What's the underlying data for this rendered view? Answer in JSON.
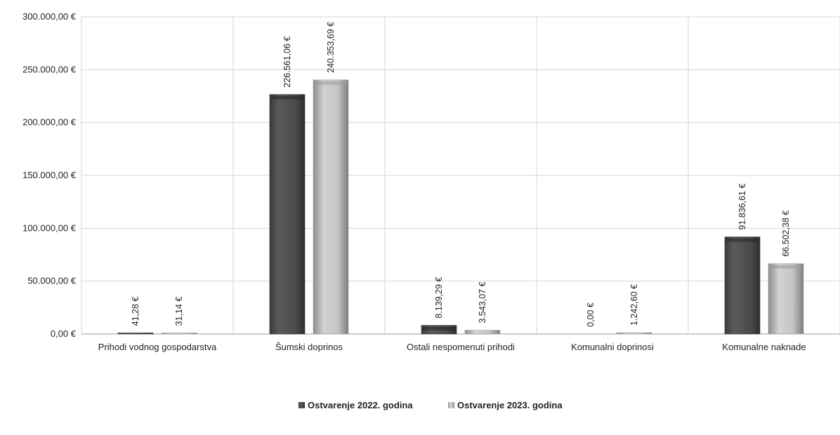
{
  "chart_data": {
    "type": "bar",
    "title": "",
    "xlabel": "",
    "ylabel": "",
    "ylim": [
      0,
      300000
    ],
    "yticks": [
      0,
      50000,
      100000,
      150000,
      200000,
      250000,
      300000
    ],
    "ytick_labels": [
      "0,00 €",
      "50.000,00 €",
      "100.000,00 €",
      "150.000,00 €",
      "200.000,00 €",
      "250.000,00 €",
      "300.000,00 €"
    ],
    "grid": true,
    "legend_position": "bottom-center",
    "categories": [
      "Prihodi vodnog gospodarstva",
      "Šumski doprinos",
      "Ostali nespomenuti prihodi",
      "Komunalni doprinosi",
      "Komunalne naknade"
    ],
    "series": [
      {
        "name": "Ostvarenje 2022. godina",
        "color": "#4a4a4a",
        "values": [
          41.28,
          226561.06,
          8139.29,
          0,
          91836.61
        ],
        "labels": [
          "41,28 €",
          "226.561,06 €",
          "8.139,29 €",
          "0,00 €",
          "91.836,61 €"
        ]
      },
      {
        "name": "Ostvarenje 2023. godina",
        "color": "#b8b8b8",
        "values": [
          31.14,
          240353.69,
          3543.07,
          1242.6,
          66502.38
        ],
        "labels": [
          "31,14 €",
          "240.353,69 €",
          "3.543,07 €",
          "1.242,60 €",
          "66.502,38 €"
        ]
      }
    ]
  }
}
